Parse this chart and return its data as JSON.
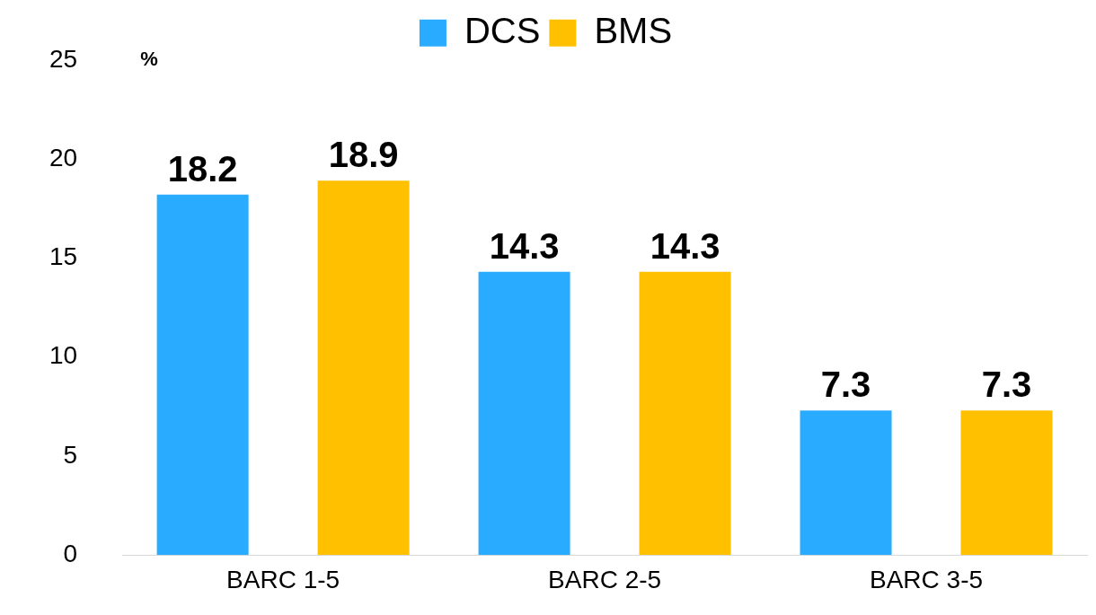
{
  "chart_data": {
    "type": "bar",
    "ylabel": "%",
    "categories": [
      "BARC 1-5",
      "BARC 2-5",
      "BARC 3-5"
    ],
    "series": [
      {
        "name": "DCS",
        "color": "#29abff",
        "values": [
          18.2,
          14.3,
          7.3
        ]
      },
      {
        "name": "BMS",
        "color": "#ffc000",
        "values": [
          18.9,
          14.3,
          7.3
        ]
      }
    ],
    "ylim": [
      0,
      25
    ],
    "yticks": [
      0,
      5,
      10,
      15,
      20,
      25
    ],
    "grid": false,
    "legend": "top",
    "data_labels": true
  }
}
